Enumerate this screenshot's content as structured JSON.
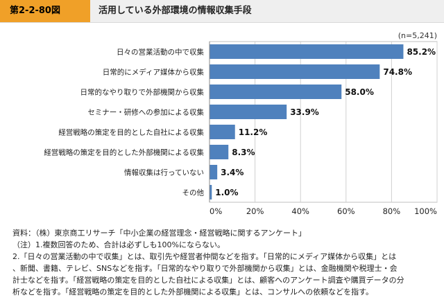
{
  "header": {
    "figure_number": "第2-2-80図",
    "title": "活用している外部環境の情報収集手段"
  },
  "chart_data": {
    "type": "bar",
    "orientation": "horizontal",
    "sample_note": "(n=5,241)",
    "categories": [
      "日々の営業活動の中で収集",
      "日常的にメディア媒体から収集",
      "日常的なやり取りで外部機関から収集",
      "セミナー・研修への参加による収集",
      "経営戦略の策定を目的とした自社による収集",
      "経営戦略の策定を目的とした外部機関による収集",
      "情報収集は行っていない",
      "その他"
    ],
    "values": [
      85.2,
      74.8,
      58.0,
      33.9,
      11.2,
      8.3,
      3.4,
      1.0
    ],
    "value_labels": [
      "85.2%",
      "74.8%",
      "58.0%",
      "33.9%",
      "11.2%",
      "8.3%",
      "3.4%",
      "1.0%"
    ],
    "xlim": [
      0,
      100
    ],
    "x_ticks": [
      0,
      20,
      40,
      60,
      80,
      100
    ],
    "x_tick_labels": [
      "0%",
      "20%",
      "40%",
      "60%",
      "80%",
      "100%"
    ],
    "grid": true,
    "bar_color": "#4f81bd"
  },
  "notes": {
    "source": "資料：（株）東京商工リサーチ「中小企業の経営理念・経営戦略に関するアンケート」",
    "note1": "（注）1.複数回答のため、合計は必ずしも100%にならない。",
    "note2_lines": [
      "2.「日々の営業活動の中で収集」とは、取引先や経営者仲間などを指す。「日常的にメディア媒体から収集」とは",
      "、新聞、書籍、テレビ、SNSなどを指す。「日常的なやり取りで外部機関から収集」とは、金融機関や税理士・会",
      "計士などを指す。「経営戦略の策定を目的とした自社による収集」とは、顧客へのアンケート調査や購買データの分",
      "析などを指す。「経営戦略の策定を目的とした外部機関による収集」とは、コンサルへの依頼などを指す。"
    ]
  }
}
